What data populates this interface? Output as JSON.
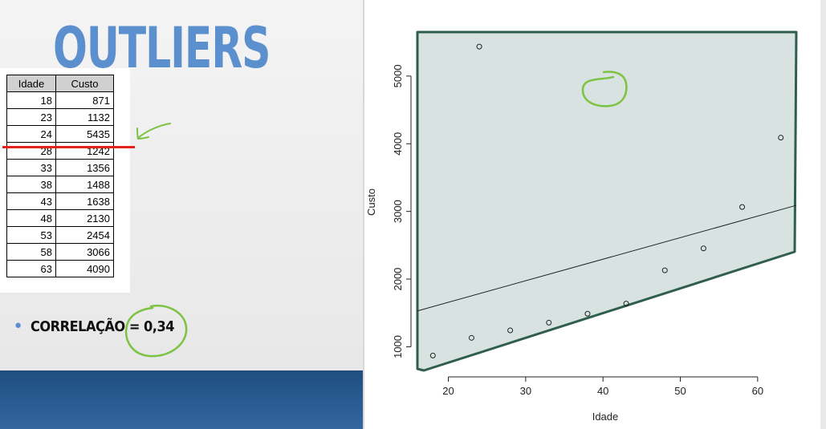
{
  "slide": {
    "title": "OUTLIERS",
    "table": {
      "headers": [
        "Idade",
        "Custo"
      ],
      "rows": [
        [
          "18",
          "871"
        ],
        [
          "23",
          "1132"
        ],
        [
          "24",
          "5435"
        ],
        [
          "28",
          "1242"
        ],
        [
          "33",
          "1356"
        ],
        [
          "38",
          "1488"
        ],
        [
          "43",
          "1638"
        ],
        [
          "48",
          "2130"
        ],
        [
          "53",
          "2454"
        ],
        [
          "58",
          "3066"
        ],
        [
          "63",
          "4090"
        ]
      ]
    },
    "bullet_text": "CORRELAÇÃO = 0,34"
  },
  "colors": {
    "title": "#5b8fcd",
    "band": "#2b5d93",
    "annotation_green": "#7dc242",
    "highlight_red": "#e3221b",
    "region_fill": "#d8e3e1",
    "region_stroke": "#2f5e4c"
  },
  "chart_data": {
    "type": "scatter",
    "xlabel": "Idade",
    "ylabel": "Custo",
    "xlim": [
      16,
      65
    ],
    "ylim": [
      650,
      5650
    ],
    "x_ticks": [
      20,
      30,
      40,
      50,
      60
    ],
    "y_ticks": [
      1000,
      2000,
      3000,
      4000,
      5000
    ],
    "x": [
      18,
      23,
      24,
      28,
      33,
      38,
      43,
      48,
      53,
      58,
      63
    ],
    "y": [
      871,
      1132,
      5435,
      1242,
      1356,
      1488,
      1638,
      2130,
      2454,
      3066,
      4090
    ],
    "regression_line": {
      "x": [
        16,
        65
      ],
      "y": [
        1530,
        3090
      ]
    },
    "grid": false,
    "legend": "none"
  }
}
